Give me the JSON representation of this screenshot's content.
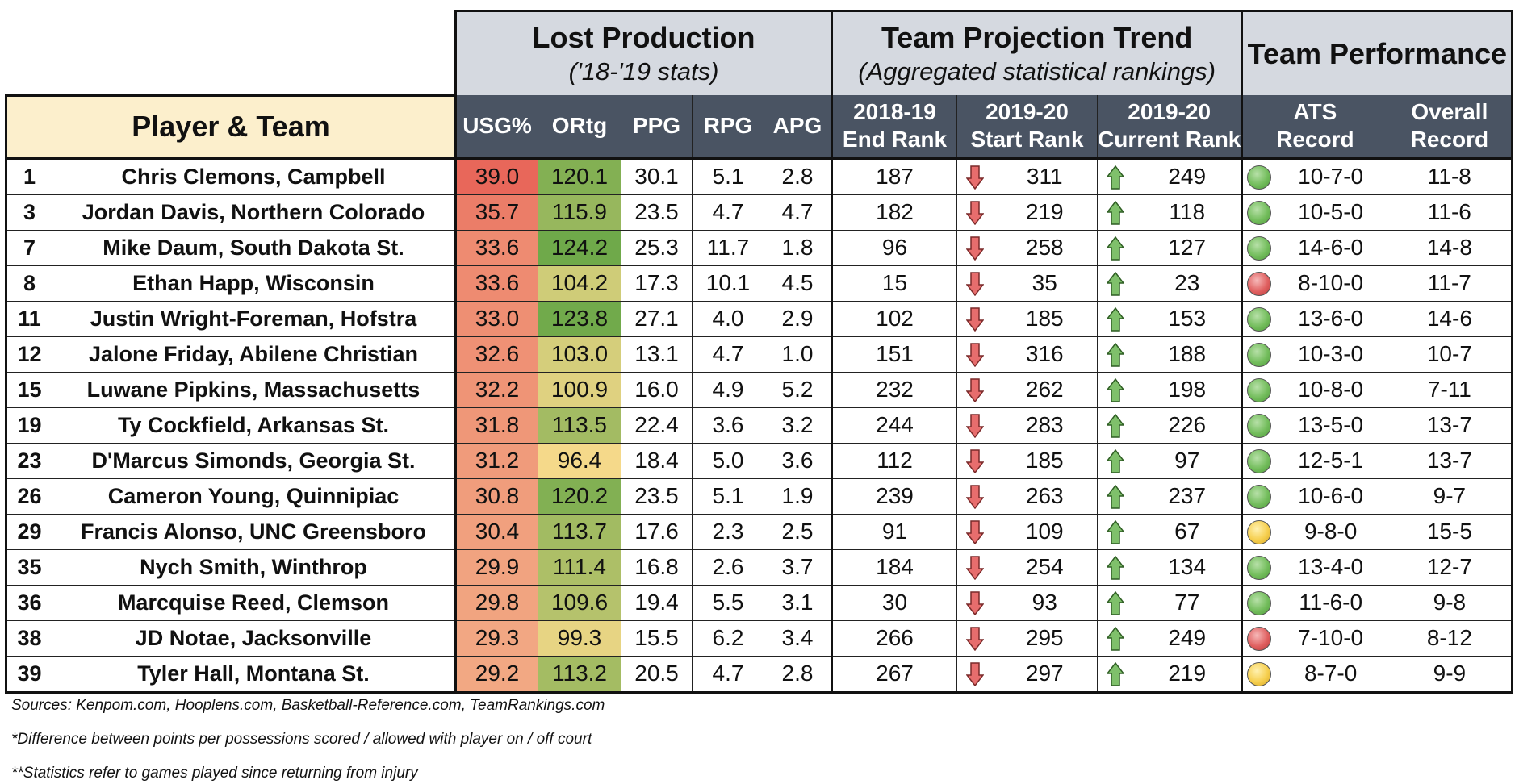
{
  "groups": {
    "lost_production": {
      "title": "Lost Production",
      "subtitle": "('18-'19 stats)"
    },
    "team_projection": {
      "title": "Team Projection Trend",
      "subtitle": "(Aggregated statistical rankings)"
    },
    "team_performance": {
      "title": "Team Performance"
    }
  },
  "headers": {
    "player_team": "Player & Team",
    "usg": "USG%",
    "ortg": "ORtg",
    "ppg": "PPG",
    "rpg": "RPG",
    "apg": "APG",
    "end_rank_1": "2018-19",
    "end_rank_2": "End Rank",
    "start_rank_1": "2019-20",
    "start_rank_2": "Start Rank",
    "current_rank_1": "2019-20",
    "current_rank_2": "Current Rank",
    "ats_1": "ATS",
    "ats_2": "Record",
    "overall_1": "Overall",
    "overall_2": "Record"
  },
  "colors": {
    "header_bg": "#4a5463",
    "group_bg": "#d5d9e0",
    "player_header_bg": "#fcefcc",
    "usg_high": "#e8675a",
    "usg_low": "#f2a883",
    "ortg_high": "#6fa94a",
    "ortg_low": "#f5d98a",
    "arrow_down": "#e76d6d",
    "arrow_up": "#7fc06b"
  },
  "rows": [
    {
      "rank": "1",
      "player": "Chris Clemons, Campbell",
      "usg": "39.0",
      "ortg": "120.1",
      "ppg": "30.1",
      "rpg": "5.1",
      "apg": "2.8",
      "end_rank": "187",
      "start_rank": "311",
      "current_rank": "249",
      "ats_status": "green",
      "ats": "10-7-0",
      "overall": "11-8"
    },
    {
      "rank": "3",
      "player": "Jordan Davis, Northern Colorado",
      "usg": "35.7",
      "ortg": "115.9",
      "ppg": "23.5",
      "rpg": "4.7",
      "apg": "4.7",
      "end_rank": "182",
      "start_rank": "219",
      "current_rank": "118",
      "ats_status": "green",
      "ats": "10-5-0",
      "overall": "11-6"
    },
    {
      "rank": "7",
      "player": "Mike Daum, South Dakota St.",
      "usg": "33.6",
      "ortg": "124.2",
      "ppg": "25.3",
      "rpg": "11.7",
      "apg": "1.8",
      "end_rank": "96",
      "start_rank": "258",
      "current_rank": "127",
      "ats_status": "green",
      "ats": "14-6-0",
      "overall": "14-8"
    },
    {
      "rank": "8",
      "player": "Ethan Happ, Wisconsin",
      "usg": "33.6",
      "ortg": "104.2",
      "ppg": "17.3",
      "rpg": "10.1",
      "apg": "4.5",
      "end_rank": "15",
      "start_rank": "35",
      "current_rank": "23",
      "ats_status": "red",
      "ats": "8-10-0",
      "overall": "11-7"
    },
    {
      "rank": "11",
      "player": "Justin Wright-Foreman, Hofstra",
      "usg": "33.0",
      "ortg": "123.8",
      "ppg": "27.1",
      "rpg": "4.0",
      "apg": "2.9",
      "end_rank": "102",
      "start_rank": "185",
      "current_rank": "153",
      "ats_status": "green",
      "ats": "13-6-0",
      "overall": "14-6"
    },
    {
      "rank": "12",
      "player": "Jalone Friday, Abilene Christian",
      "usg": "32.6",
      "ortg": "103.0",
      "ppg": "13.1",
      "rpg": "4.7",
      "apg": "1.0",
      "end_rank": "151",
      "start_rank": "316",
      "current_rank": "188",
      "ats_status": "green",
      "ats": "10-3-0",
      "overall": "10-7"
    },
    {
      "rank": "15",
      "player": "Luwane Pipkins, Massachusetts",
      "usg": "32.2",
      "ortg": "100.9",
      "ppg": "16.0",
      "rpg": "4.9",
      "apg": "5.2",
      "end_rank": "232",
      "start_rank": "262",
      "current_rank": "198",
      "ats_status": "green",
      "ats": "10-8-0",
      "overall": "7-11"
    },
    {
      "rank": "19",
      "player": "Ty Cockfield, Arkansas St.",
      "usg": "31.8",
      "ortg": "113.5",
      "ppg": "22.4",
      "rpg": "3.6",
      "apg": "3.2",
      "end_rank": "244",
      "start_rank": "283",
      "current_rank": "226",
      "ats_status": "green",
      "ats": "13-5-0",
      "overall": "13-7"
    },
    {
      "rank": "23",
      "player": "D'Marcus Simonds, Georgia St.",
      "usg": "31.2",
      "ortg": "96.4",
      "ppg": "18.4",
      "rpg": "5.0",
      "apg": "3.6",
      "end_rank": "112",
      "start_rank": "185",
      "current_rank": "97",
      "ats_status": "green",
      "ats": "12-5-1",
      "overall": "13-7"
    },
    {
      "rank": "26",
      "player": "Cameron Young, Quinnipiac",
      "usg": "30.8",
      "ortg": "120.2",
      "ppg": "23.5",
      "rpg": "5.1",
      "apg": "1.9",
      "end_rank": "239",
      "start_rank": "263",
      "current_rank": "237",
      "ats_status": "green",
      "ats": "10-6-0",
      "overall": "9-7"
    },
    {
      "rank": "29",
      "player": "Francis Alonso, UNC Greensboro",
      "usg": "30.4",
      "ortg": "113.7",
      "ppg": "17.6",
      "rpg": "2.3",
      "apg": "2.5",
      "end_rank": "91",
      "start_rank": "109",
      "current_rank": "67",
      "ats_status": "yellow",
      "ats": "9-8-0",
      "overall": "15-5"
    },
    {
      "rank": "35",
      "player": "Nych Smith, Winthrop",
      "usg": "29.9",
      "ortg": "111.4",
      "ppg": "16.8",
      "rpg": "2.6",
      "apg": "3.7",
      "end_rank": "184",
      "start_rank": "254",
      "current_rank": "134",
      "ats_status": "green",
      "ats": "13-4-0",
      "overall": "12-7"
    },
    {
      "rank": "36",
      "player": "Marcquise Reed, Clemson",
      "usg": "29.8",
      "ortg": "109.6",
      "ppg": "19.4",
      "rpg": "5.5",
      "apg": "3.1",
      "end_rank": "30",
      "start_rank": "93",
      "current_rank": "77",
      "ats_status": "green",
      "ats": "11-6-0",
      "overall": "9-8"
    },
    {
      "rank": "38",
      "player": "JD Notae, Jacksonville",
      "usg": "29.3",
      "ortg": "99.3",
      "ppg": "15.5",
      "rpg": "6.2",
      "apg": "3.4",
      "end_rank": "266",
      "start_rank": "295",
      "current_rank": "249",
      "ats_status": "red",
      "ats": "7-10-0",
      "overall": "8-12"
    },
    {
      "rank": "39",
      "player": "Tyler Hall, Montana St.",
      "usg": "29.2",
      "ortg": "113.2",
      "ppg": "20.5",
      "rpg": "4.7",
      "apg": "2.8",
      "end_rank": "267",
      "start_rank": "297",
      "current_rank": "219",
      "ats_status": "yellow",
      "ats": "8-7-0",
      "overall": "9-9"
    }
  ],
  "footnotes": {
    "sources": "Sources: Kenpom.com, Hooplens.com, Basketball-Reference.com, TeamRankings.com",
    "note1": "*Difference between points per possessions scored / allowed with player on / off court",
    "note2": "**Statistics refer to games played since returning from injury"
  }
}
